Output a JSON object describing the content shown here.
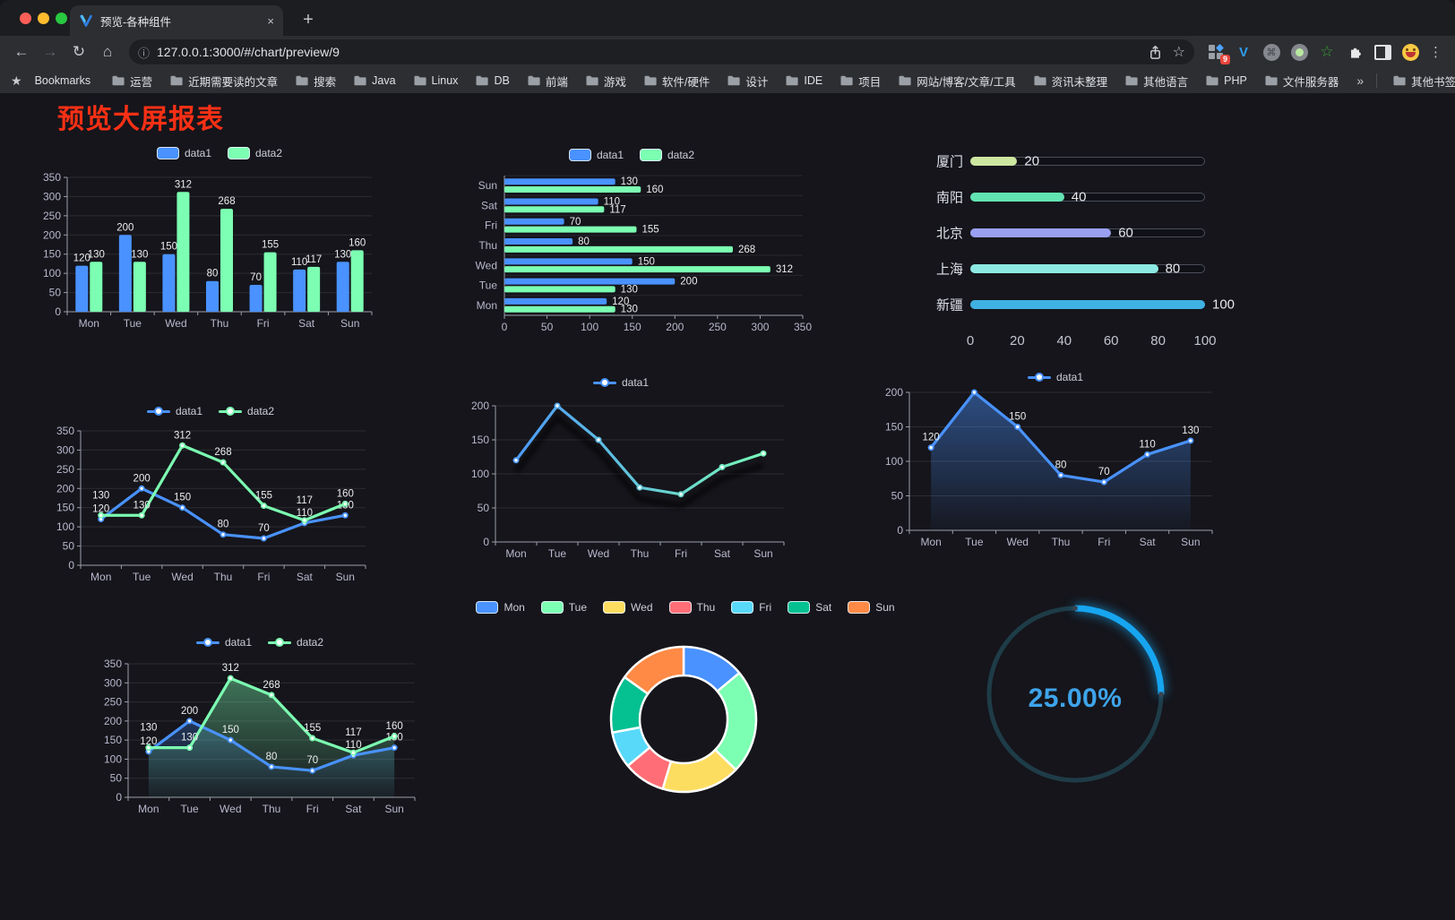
{
  "browser": {
    "tab_title": "预览-各种组件",
    "tab_close": "×",
    "new_tab": "+",
    "url": "127.0.0.1:3000/#/chart/preview/9",
    "back": "←",
    "forward": "→",
    "reload": "↻",
    "home": "⌂",
    "info": "ⓘ",
    "star": "☆",
    "kebab": "⋮",
    "extension_badge": "9",
    "extension_v": "V",
    "extension_cmd": "⌘",
    "extension_star": "☆",
    "bookmarks_label": "Bookmarks",
    "bookmarks_star": "★",
    "bookmarks": [
      "运营",
      "近期需要读的文章",
      "搜索",
      "Java",
      "Linux",
      "DB",
      "前端",
      "游戏",
      "软件/硬件",
      "设计",
      "IDE",
      "项目",
      "网站/博客/文章/工具",
      "资讯未整理",
      "其他语言",
      "PHP",
      "文件服务器"
    ],
    "overflow": "»",
    "other_bookmarks": "其他书签"
  },
  "page": {
    "title": "预览大屏报表",
    "title_color": "#fa3015"
  },
  "theme": {
    "axis_text": "#b9b8ce",
    "axis_line": "#9b9eab",
    "split_line": "rgba(255,255,255,0.10)",
    "value_label": "#eceded",
    "background": "#15151b"
  },
  "chart_data": [
    {
      "id": "bar-grouped",
      "type": "bar",
      "orientation": "vertical",
      "categories": [
        "Mon",
        "Tue",
        "Wed",
        "Thu",
        "Fri",
        "Sat",
        "Sun"
      ],
      "series": [
        {
          "name": "data1",
          "color": "#4992ff",
          "values": [
            120,
            200,
            150,
            80,
            70,
            110,
            130
          ]
        },
        {
          "name": "data2",
          "color": "#7cffb2",
          "values": [
            130,
            130,
            312,
            268,
            155,
            117,
            160
          ]
        }
      ],
      "ylim": [
        0,
        350
      ],
      "ytick_step": 50,
      "legend_position": "top",
      "grid": true
    },
    {
      "id": "bar-horizontal",
      "type": "bar",
      "orientation": "horizontal",
      "categories_top_to_bottom": [
        "Sun",
        "Sat",
        "Fri",
        "Thu",
        "Wed",
        "Tue",
        "Mon"
      ],
      "series": [
        {
          "name": "data1",
          "color": "#4992ff",
          "values": [
            130,
            110,
            70,
            80,
            150,
            200,
            120
          ]
        },
        {
          "name": "data2",
          "color": "#7cffb2",
          "values": [
            160,
            117,
            155,
            268,
            312,
            130,
            130
          ]
        }
      ],
      "xlim": [
        0,
        350
      ],
      "xtick_step": 50,
      "legend_position": "top"
    },
    {
      "id": "progress-bars",
      "type": "bar",
      "orientation": "horizontal-progress",
      "items": [
        {
          "label": "厦门",
          "value": 20,
          "color": "#cde6a0"
        },
        {
          "label": "南阳",
          "value": 40,
          "color": "#62e3b2"
        },
        {
          "label": "北京",
          "value": 60,
          "color": "#9a9ff2"
        },
        {
          "label": "上海",
          "value": 80,
          "color": "#8ce8e2"
        },
        {
          "label": "新疆",
          "value": 100,
          "color": "#3fb1e3"
        }
      ],
      "xlim": [
        0,
        100
      ],
      "xticks": [
        0,
        20,
        40,
        60,
        80,
        100
      ]
    },
    {
      "id": "line-dual",
      "type": "line",
      "categories": [
        "Mon",
        "Tue",
        "Wed",
        "Thu",
        "Fri",
        "Sat",
        "Sun"
      ],
      "series": [
        {
          "name": "data1",
          "color": "#4992ff",
          "values": [
            120,
            200,
            150,
            80,
            70,
            110,
            130
          ]
        },
        {
          "name": "data2",
          "color": "#7cffb2",
          "values": [
            130,
            130,
            312,
            268,
            155,
            117,
            160
          ]
        }
      ],
      "ylim": [
        0,
        350
      ],
      "ytick_step": 50,
      "point_labels": true,
      "legend_position": "top"
    },
    {
      "id": "line-gradient",
      "type": "line",
      "categories": [
        "Mon",
        "Tue",
        "Wed",
        "Thu",
        "Fri",
        "Sat",
        "Sun"
      ],
      "series": [
        {
          "name": "data1",
          "gradient": [
            "#4992ff",
            "#7cffb2"
          ],
          "values": [
            120,
            200,
            150,
            80,
            70,
            110,
            130
          ]
        }
      ],
      "ylim": [
        0,
        200
      ],
      "ytick_step": 50,
      "shadow": true,
      "point_labels": false,
      "legend_position": "top"
    },
    {
      "id": "area-single",
      "type": "area",
      "categories": [
        "Mon",
        "Tue",
        "Wed",
        "Thu",
        "Fri",
        "Sat",
        "Sun"
      ],
      "series": [
        {
          "name": "data1",
          "color": "#4992ff",
          "values": [
            120,
            200,
            150,
            80,
            70,
            110,
            130
          ]
        }
      ],
      "ylim": [
        0,
        200
      ],
      "ytick_step": 50,
      "point_labels": true,
      "legend_position": "top"
    },
    {
      "id": "area-dual",
      "type": "area",
      "categories": [
        "Mon",
        "Tue",
        "Wed",
        "Thu",
        "Fri",
        "Sat",
        "Sun"
      ],
      "series": [
        {
          "name": "data1",
          "color": "#4992ff",
          "values": [
            120,
            200,
            150,
            80,
            70,
            110,
            130
          ]
        },
        {
          "name": "data2",
          "color": "#7cffb2",
          "values": [
            130,
            130,
            312,
            268,
            155,
            117,
            160
          ]
        }
      ],
      "ylim": [
        0,
        350
      ],
      "ytick_step": 50,
      "point_labels": true,
      "legend_position": "top"
    },
    {
      "id": "donut",
      "type": "pie",
      "labels": [
        "Mon",
        "Tue",
        "Wed",
        "Thu",
        "Fri",
        "Sat",
        "Sun"
      ],
      "values": [
        120,
        200,
        150,
        80,
        70,
        110,
        130
      ],
      "colors": [
        "#4992ff",
        "#7cffb2",
        "#fddd60",
        "#ff6e76",
        "#58d9f9",
        "#05c091",
        "#ff8a45"
      ],
      "inner_radius_ratio": 0.6,
      "border_color": "#ffffff",
      "legend_position": "top"
    },
    {
      "id": "gauge",
      "type": "gauge",
      "value": 25,
      "max": 100,
      "display": "25.00%",
      "arc_color": "#17a5f0",
      "track_color": "#1e3c47",
      "text_color": "#3ea4ea"
    }
  ]
}
